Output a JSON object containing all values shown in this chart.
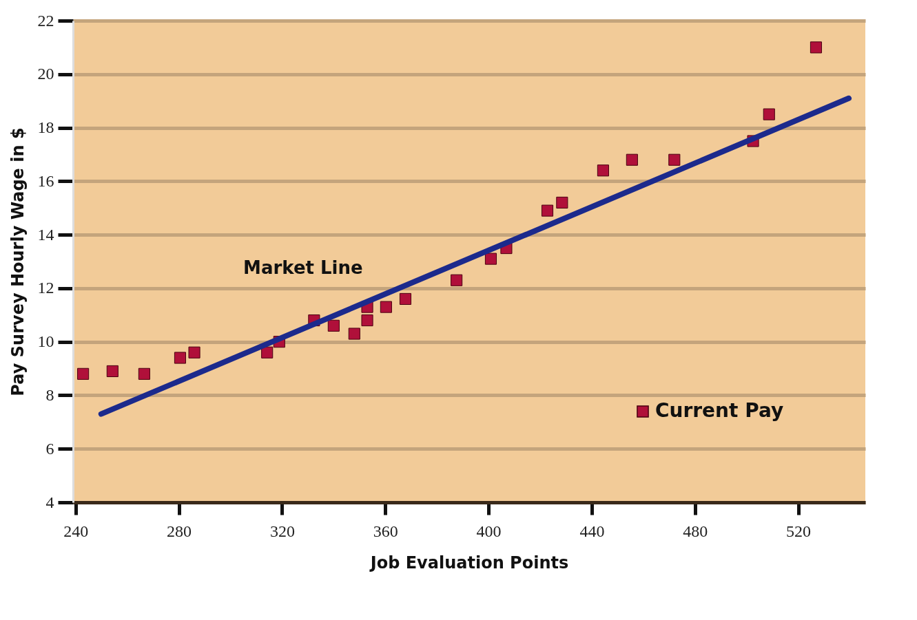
{
  "chart_data": {
    "type": "scatter",
    "xlabel": "Job Evaluation Points",
    "ylabel": "Pay Survey Hourly Wage in $",
    "series": [
      {
        "name": "Current Pay",
        "color": "#b0103a",
        "marker": "square",
        "x": [
          242.9,
          254.3,
          266.6,
          280.5,
          286,
          314.2,
          318.9,
          332.4,
          340,
          348,
          353,
          353,
          360.3,
          367.8,
          387.6,
          400.9,
          406.9,
          422.8,
          428.5,
          444.4,
          455.6,
          472,
          502.5,
          508.7,
          526.9
        ],
        "values": [
          8.8,
          8.9,
          8.8,
          9.4,
          9.6,
          9.6,
          10.0,
          10.8,
          10.6,
          10.3,
          10.8,
          11.3,
          11.3,
          11.6,
          12.3,
          13.1,
          13.5,
          14.9,
          15.2,
          16.4,
          16.8,
          16.8,
          17.5,
          18.5,
          21.0
        ]
      },
      {
        "type": "line",
        "name": "Market Line",
        "color": "#1c2a8c",
        "x": [
          249.9,
          539.6
        ],
        "values": [
          7.3,
          19.1
        ]
      }
    ],
    "xlim": [
      239,
      546
    ],
    "xticks": [
      240,
      280,
      320,
      360,
      400,
      440,
      480,
      520
    ],
    "ylim": [
      4,
      22
    ],
    "yticks": [
      4,
      6,
      8,
      10,
      12,
      14,
      16,
      18,
      20,
      22
    ],
    "grid": "y",
    "legend": "bottom right"
  }
}
